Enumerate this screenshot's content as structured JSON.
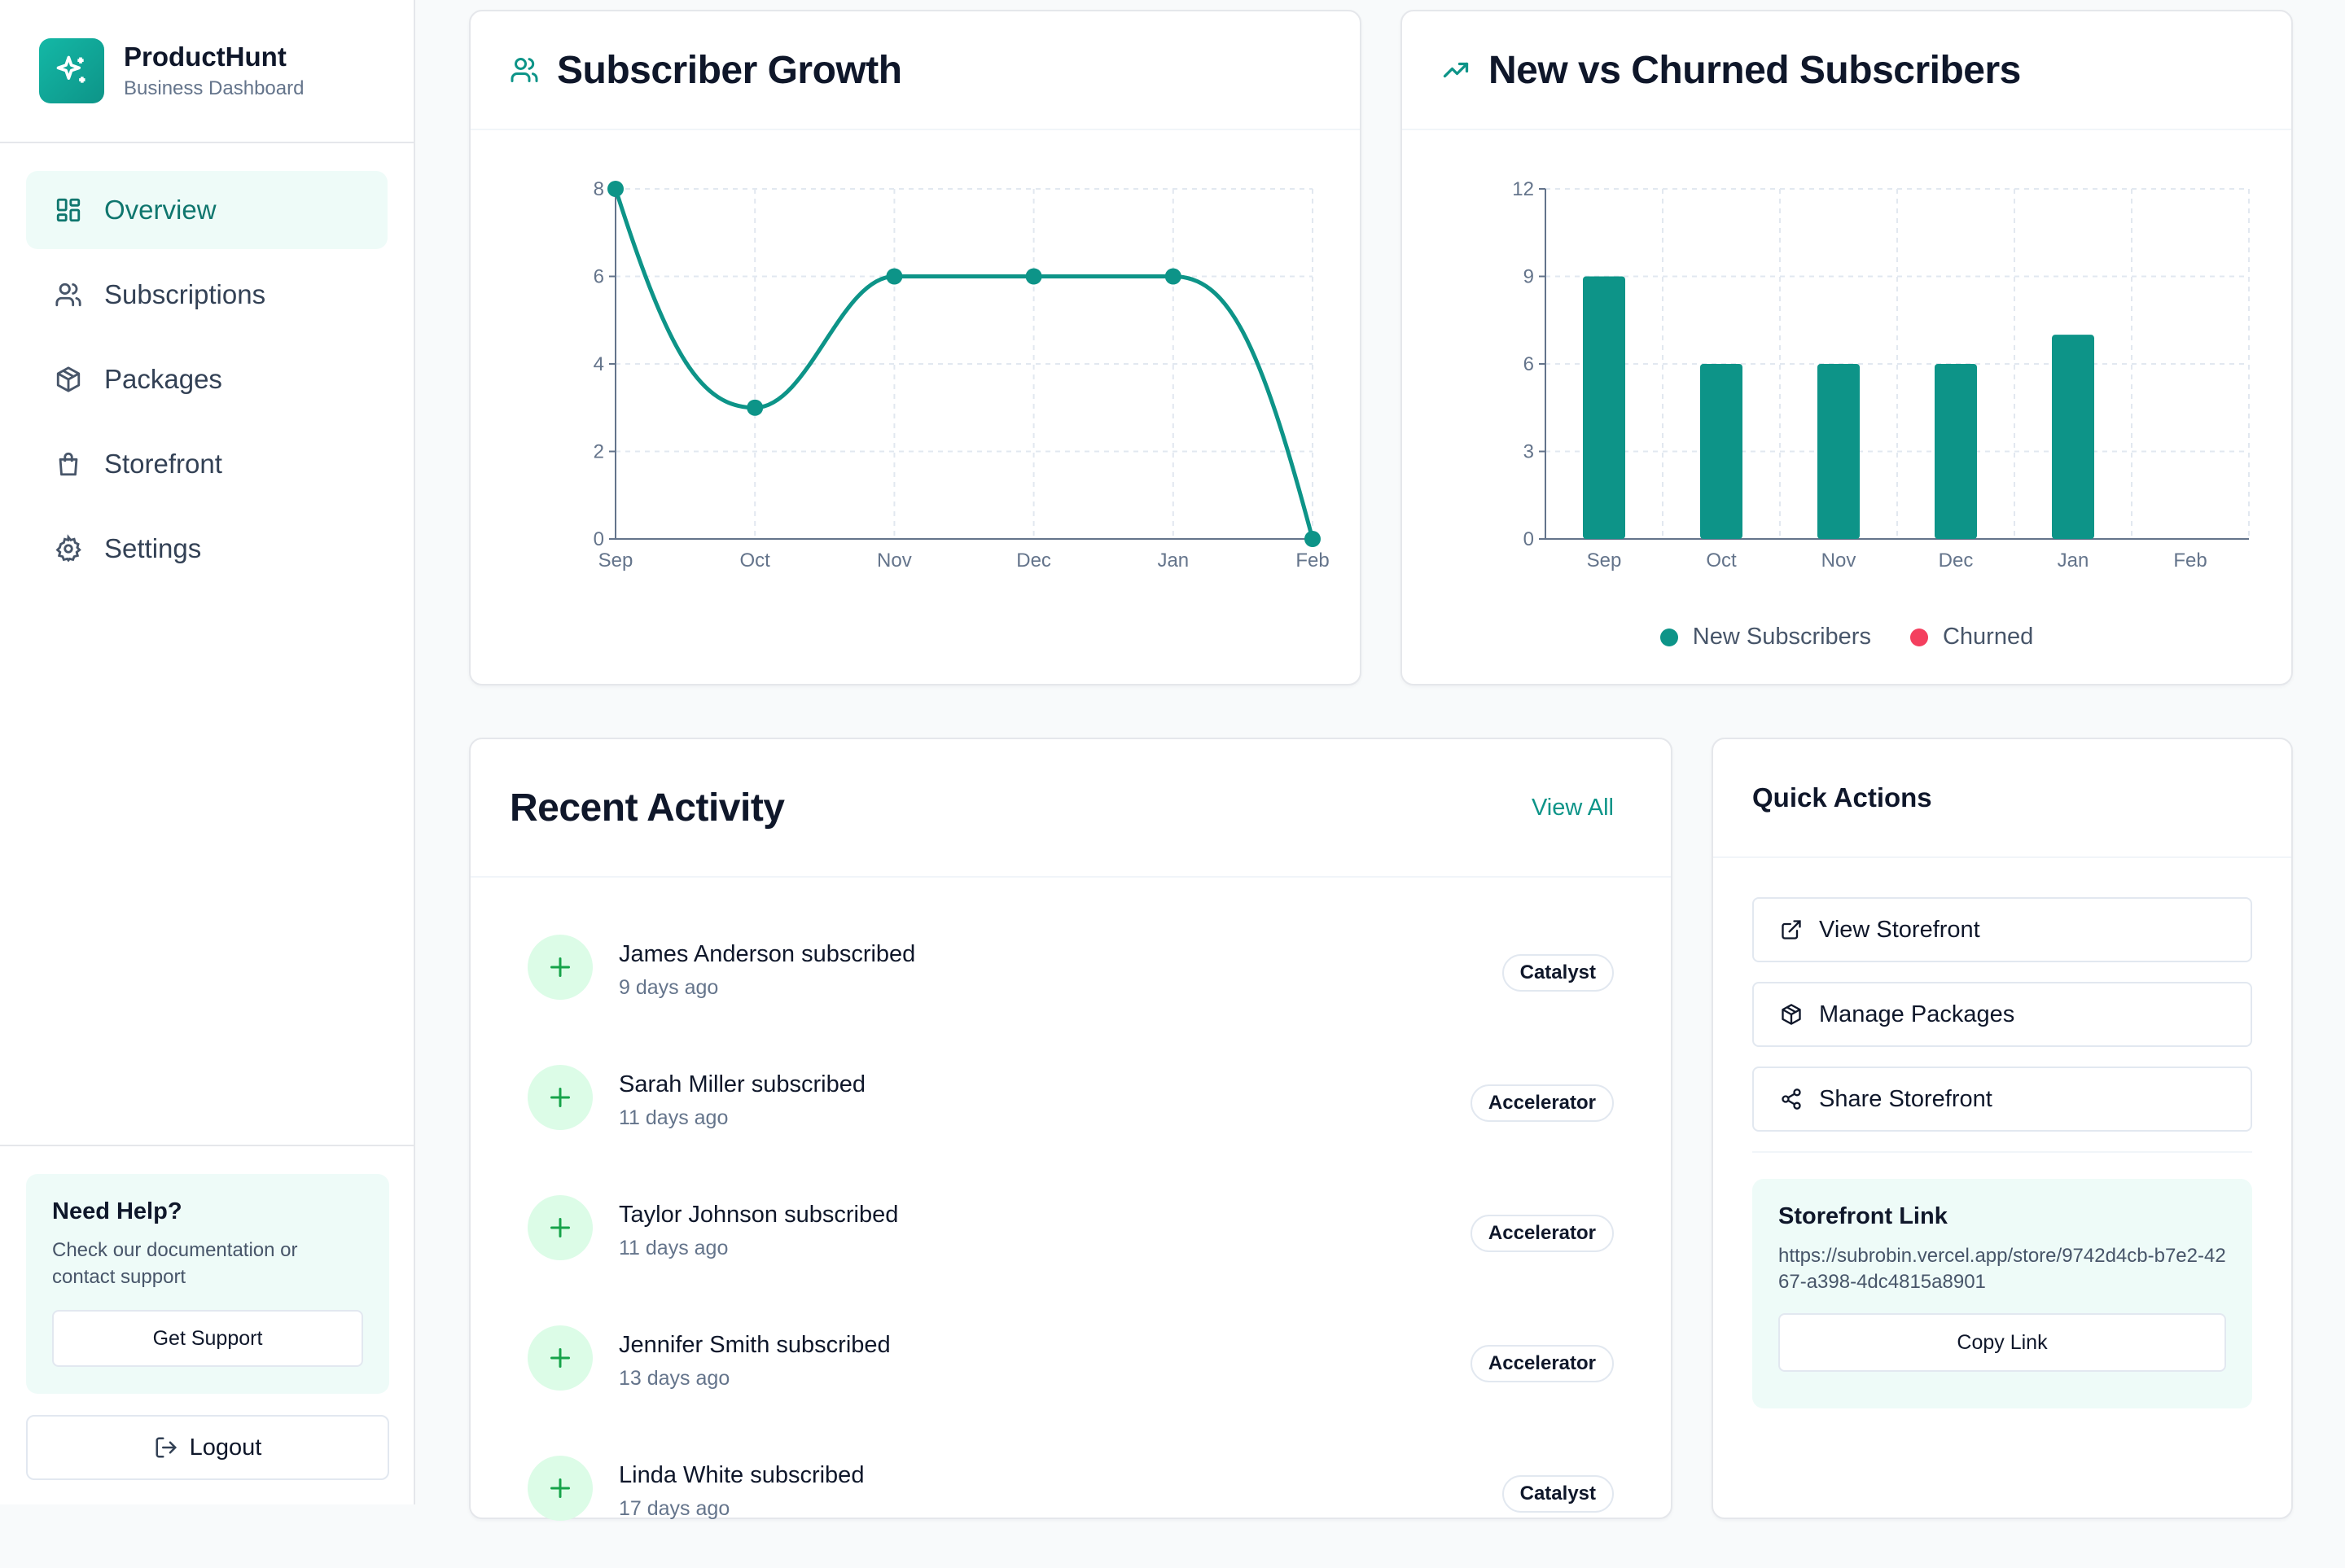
{
  "brand": {
    "name": "ProductHunt",
    "subtitle": "Business Dashboard",
    "logo_icon": "sparkles-icon",
    "accent": "#0d9488"
  },
  "nav": {
    "items": [
      {
        "label": "Overview",
        "icon": "dashboard-icon",
        "active": true
      },
      {
        "label": "Subscriptions",
        "icon": "users-icon",
        "active": false
      },
      {
        "label": "Packages",
        "icon": "package-icon",
        "active": false
      },
      {
        "label": "Storefront",
        "icon": "shopping-bag-icon",
        "active": false
      },
      {
        "label": "Settings",
        "icon": "gear-icon",
        "active": false
      }
    ]
  },
  "help": {
    "title": "Need Help?",
    "text": "Check our documentation or contact support",
    "button": "Get Support"
  },
  "logout": {
    "label": "Logout"
  },
  "growth_card": {
    "title": "Subscriber Growth",
    "icon": "users-icon"
  },
  "churn_card": {
    "title": "New vs Churned Subscribers",
    "icon": "trending-up-icon",
    "legend": [
      {
        "label": "New Subscribers",
        "color": "#0d9488"
      },
      {
        "label": "Churned",
        "color": "#f43f5e"
      }
    ]
  },
  "chart_data": [
    {
      "type": "line",
      "title": "Subscriber Growth",
      "x": [
        "Sep",
        "Oct",
        "Nov",
        "Dec",
        "Jan",
        "Feb"
      ],
      "series": [
        {
          "values": [
            8,
            3,
            6,
            6,
            6,
            0
          ],
          "color": "#0d9488"
        }
      ],
      "ylim": [
        0,
        8
      ],
      "yticks": [
        0,
        2,
        4,
        6,
        8
      ],
      "grid": true
    },
    {
      "type": "bar",
      "title": "New vs Churned Subscribers",
      "categories": [
        "Sep",
        "Oct",
        "Nov",
        "Dec",
        "Jan",
        "Feb"
      ],
      "series": [
        {
          "name": "New Subscribers",
          "values": [
            9,
            6,
            6,
            6,
            7,
            0
          ],
          "color": "#0d9488"
        },
        {
          "name": "Churned",
          "values": [
            0,
            0,
            0,
            0,
            0,
            0
          ],
          "color": "#f43f5e"
        }
      ],
      "ylim": [
        0,
        12
      ],
      "yticks": [
        0,
        3,
        6,
        9,
        12
      ],
      "grid": true,
      "legend": "bottom"
    }
  ],
  "activity": {
    "title": "Recent Activity",
    "view_all": "View All",
    "items": [
      {
        "title": "James Anderson subscribed",
        "time": "9 days ago",
        "badge": "Catalyst"
      },
      {
        "title": "Sarah Miller subscribed",
        "time": "11 days ago",
        "badge": "Accelerator"
      },
      {
        "title": "Taylor Johnson subscribed",
        "time": "11 days ago",
        "badge": "Accelerator"
      },
      {
        "title": "Jennifer Smith subscribed",
        "time": "13 days ago",
        "badge": "Accelerator"
      },
      {
        "title": "Linda White subscribed",
        "time": "17 days ago",
        "badge": "Catalyst"
      }
    ]
  },
  "quick_actions": {
    "title": "Quick Actions",
    "buttons": [
      {
        "label": "View Storefront",
        "icon": "external-link-icon"
      },
      {
        "label": "Manage Packages",
        "icon": "package-icon"
      },
      {
        "label": "Share Storefront",
        "icon": "share-icon"
      }
    ],
    "storefront_link": {
      "title": "Storefront Link",
      "url": "https://subrobin.vercel.app/store/9742d4cb-b7e2-4267-a398-4dc4815a8901",
      "button": "Copy Link"
    }
  }
}
